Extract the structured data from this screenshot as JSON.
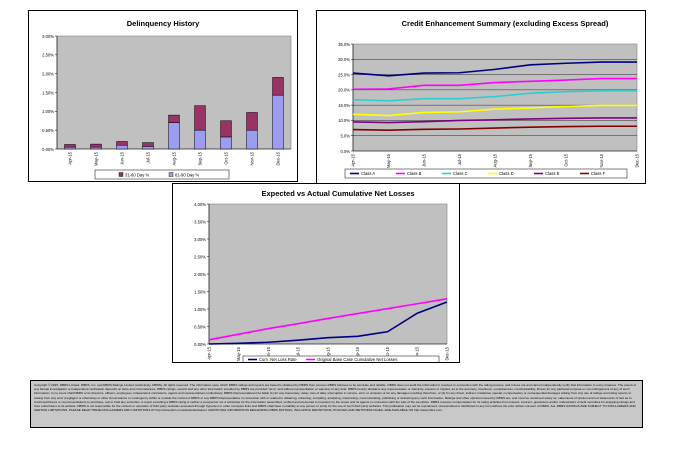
{
  "chart_data": [
    {
      "type": "bar",
      "title": "Delinquency History",
      "categories": [
        "Apr-15",
        "May-15",
        "Jun-15",
        "Jul-15",
        "Aug-15",
        "Sep-15",
        "Oct-15",
        "Nov-15",
        "Dec-15"
      ],
      "stacked": true,
      "series": [
        {
          "name": "61-90 Day %",
          "color": "#9c9cf0",
          "values": [
            0.05,
            0.05,
            0.1,
            0.07,
            0.7,
            0.5,
            0.32,
            0.5,
            1.43
          ]
        },
        {
          "name": "31-60 Day %",
          "color": "#993366",
          "values": [
            0.07,
            0.08,
            0.1,
            0.1,
            0.2,
            0.65,
            0.43,
            0.47,
            0.47
          ]
        }
      ],
      "ylim": [
        0,
        3.0
      ],
      "yticks": [
        "0.00%",
        "0.50%",
        "1.00%",
        "1.50%",
        "2.00%",
        "2.50%",
        "3.00%"
      ],
      "legend_order": [
        "31-60 Day %",
        "61-90 Day %"
      ],
      "legend": "bottom",
      "grid": false
    },
    {
      "type": "line",
      "title": "Credit Enhancement Summary (excluding Excess Spread)",
      "categories": [
        "Apr-15",
        "May-15",
        "Jun-15",
        "Jul-15",
        "Aug-15",
        "Sep-15",
        "Oct-15",
        "Nov-15",
        "Dec-15"
      ],
      "series": [
        {
          "name": "Class A",
          "color": "#000080",
          "values": [
            25.5,
            24.6,
            25.5,
            25.6,
            26.7,
            28.2,
            28.7,
            29.1,
            29.1
          ]
        },
        {
          "name": "Class B",
          "color": "#ff00ff",
          "values": [
            20.2,
            20.3,
            21.5,
            21.5,
            22.4,
            22.8,
            23.2,
            23.7,
            23.7
          ]
        },
        {
          "name": "Class C",
          "color": "#33cccc",
          "values": [
            16.8,
            16.4,
            17.1,
            17.1,
            17.8,
            18.9,
            19.4,
            19.7,
            19.7
          ]
        },
        {
          "name": "Class D",
          "color": "#ffff00",
          "values": [
            12.0,
            11.6,
            12.6,
            12.8,
            13.7,
            14.1,
            14.6,
            14.9,
            14.9
          ]
        },
        {
          "name": "Class E",
          "color": "#800080",
          "values": [
            9.5,
            9.3,
            9.6,
            10.0,
            10.2,
            10.5,
            10.7,
            10.8,
            10.8
          ]
        },
        {
          "name": "Class F",
          "color": "#800000",
          "values": [
            7.0,
            6.8,
            7.1,
            7.2,
            7.5,
            7.8,
            8.0,
            8.1,
            8.1
          ]
        }
      ],
      "ylim": [
        0,
        35
      ],
      "yticks": [
        "0.0%",
        "5.0%",
        "10.0%",
        "15.0%",
        "20.0%",
        "25.0%",
        "30.0%",
        "35.0%"
      ],
      "legend": "bottom",
      "grid": true
    },
    {
      "type": "line",
      "title": "Expected vs Actual Cumulative Net Losses",
      "categories": [
        "Apr-15",
        "May-15",
        "Jun-15",
        "Jul-15",
        "Aug-15",
        "Sep-15",
        "Oct-15",
        "Nov-15",
        "Dec-15"
      ],
      "series": [
        {
          "name": "Cum. Net Loss Rate",
          "color": "#000080",
          "values": [
            0.0,
            0.02,
            0.05,
            0.11,
            0.18,
            0.22,
            0.35,
            0.88,
            1.2
          ]
        },
        {
          "name": "Original Base Case Cumulative Net Losses",
          "color": "#ff00ff",
          "values": [
            0.12,
            0.28,
            0.44,
            0.58,
            0.73,
            0.87,
            1.01,
            1.15,
            1.29
          ]
        }
      ],
      "ylim": [
        0,
        4.0
      ],
      "yticks": [
        "0.00%",
        "0.50%",
        "1.00%",
        "1.50%",
        "2.00%",
        "2.50%",
        "3.00%",
        "3.50%",
        "4.00%"
      ],
      "legend": "bottom",
      "grid": false
    }
  ],
  "disclaimer": "Copyright © 2015, DBRS Limited, DBRS, Inc. and DBRS Ratings Limited (collectively, DBRS). All rights reserved. The information upon which DBRS ratings and reports are based is obtained by DBRS from sources DBRS believes to be accurate and reliable. DBRS does not audit the information it receives in connection with the rating process, and it does not and cannot independently verify that information in every instance. The extent of any factual investigation or independent verification depends on facts and circumstances. DBRS ratings, reports and any other information provided by DBRS are provided \"as is\" and without representation or warranty of any kind. DBRS hereby disclaims any representation or warranty, express or implied, as to the accuracy, timeliness, completeness, merchantability, fitness for any particular purpose or non-infringement of any of such information. In no event shall DBRS or its directors, officers, employees, independent contractors, agents and representatives (collectively, DBRS Representatives) be liable (1) for any inaccuracy, delay, loss of data, interruption in service, error or omission or for any damages resulting therefrom, or (2) for any direct, indirect, incidental, special, compensatory or consequential damages arising from any use of ratings and rating reports or arising from any error (negligent or otherwise) or other circumstance or contingency within or outside the control of DBRS or any DBRS Representative in connection with or related to obtaining, collecting, compiling, analyzing, interpreting, communicating, publishing or delivering any such information. Ratings and other opinions issued by DBRS are, and must be construed solely as, statements of opinion and not statements of fact as to credit worthiness or recommendations to purchase, sell or hold any securities. A report providing a DBRS rating is neither a prospectus nor a substitute for the information assembled, verified and presented to investors by the issuer and its agents in connection with the sale of the securities. DBRS receives compensation for its rating activities from issuers, insurers, guarantors and/or underwriters of debt securities for assigning ratings and from subscribers to its website. DBRS is not responsible for the content or operation of third party websites accessed through hypertext or other computer links and DBRS shall have no liability to any person or entity for the use of such third party websites. This publication may not be reproduced, retransmitted or distributed in any form without the prior written consent of DBRS. ALL DBRS RATINGS ARE SUBJECT TO DISCLAIMERS AND CERTAIN LIMITATIONS. PLEASE READ THESE DISCLAIMERS AND LIMITATIONS AT http://www.dbrs.com/about/disclaimer. ADDITIONAL INFORMATION REGARDING DBRS RATINGS, INCLUDING DEFINITIONS, POLICIES AND METHODOLOGIES, ARE AVAILABLE ON http://www.dbrs.com."
}
